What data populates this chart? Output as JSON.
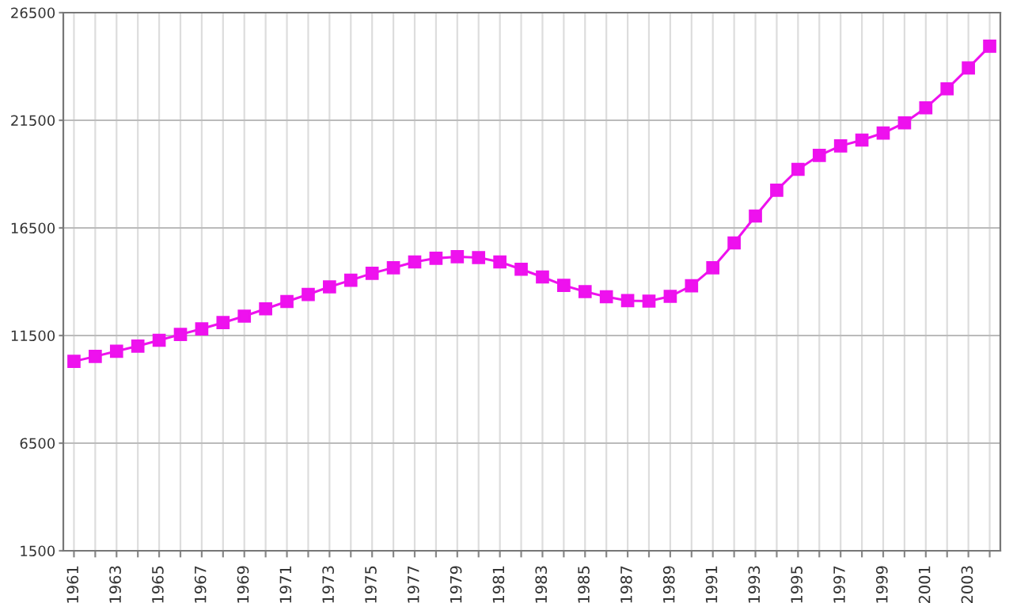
{
  "chart_data": {
    "type": "line",
    "marker": "square",
    "grid": true,
    "legend": false,
    "x": [
      1961,
      1962,
      1963,
      1964,
      1965,
      1966,
      1967,
      1968,
      1969,
      1970,
      1971,
      1972,
      1973,
      1974,
      1975,
      1976,
      1977,
      1978,
      1979,
      1980,
      1981,
      1982,
      1983,
      1984,
      1985,
      1986,
      1987,
      1988,
      1989,
      1990,
      1991,
      1992,
      1993,
      1994,
      1995,
      1996,
      1997,
      1998,
      1999,
      2000,
      2001,
      2002,
      2003,
      2004
    ],
    "series": [
      {
        "color": "#ee11ee",
        "values": [
          10300,
          10530,
          10770,
          11010,
          11280,
          11550,
          11810,
          12100,
          12400,
          12740,
          13080,
          13410,
          13760,
          14070,
          14390,
          14650,
          14920,
          15090,
          15160,
          15120,
          14920,
          14580,
          14220,
          13830,
          13540,
          13300,
          13120,
          13100,
          13320,
          13810,
          14650,
          15800,
          17050,
          18250,
          19220,
          19870,
          20310,
          20580,
          20910,
          21380,
          22080,
          22960,
          23930,
          24940
        ]
      }
    ],
    "xlim": [
      1960.5,
      2004.5
    ],
    "xticks": [
      1961,
      {
        "value": 1962,
        "label": null
      },
      1963,
      {
        "value": 1964,
        "label": null
      },
      1965,
      {
        "value": 1966,
        "label": null
      },
      1967,
      {
        "value": 1968,
        "label": null
      },
      1969,
      {
        "value": 1970,
        "label": null
      },
      1971,
      {
        "value": 1972,
        "label": null
      },
      1973,
      {
        "value": 1974,
        "label": null
      },
      1975,
      {
        "value": 1976,
        "label": null
      },
      1977,
      {
        "value": 1978,
        "label": null
      },
      1979,
      {
        "value": 1980,
        "label": null
      },
      1981,
      {
        "value": 1982,
        "label": null
      },
      1983,
      {
        "value": 1984,
        "label": null
      },
      1985,
      {
        "value": 1986,
        "label": null
      },
      1987,
      {
        "value": 1988,
        "label": null
      },
      1989,
      {
        "value": 1990,
        "label": null
      },
      1991,
      {
        "value": 1992,
        "label": null
      },
      1993,
      {
        "value": 1994,
        "label": null
      },
      1995,
      {
        "value": 1996,
        "label": null
      },
      1997,
      {
        "value": 1998,
        "label": null
      },
      1999,
      {
        "value": 2000,
        "label": null
      },
      2001,
      {
        "value": 2002,
        "label": null
      },
      2003,
      {
        "value": 2004,
        "label": null
      }
    ],
    "ylim": [
      1500,
      26500
    ],
    "yticks": [
      1500,
      6500,
      11500,
      16500,
      21500,
      26500
    ]
  }
}
